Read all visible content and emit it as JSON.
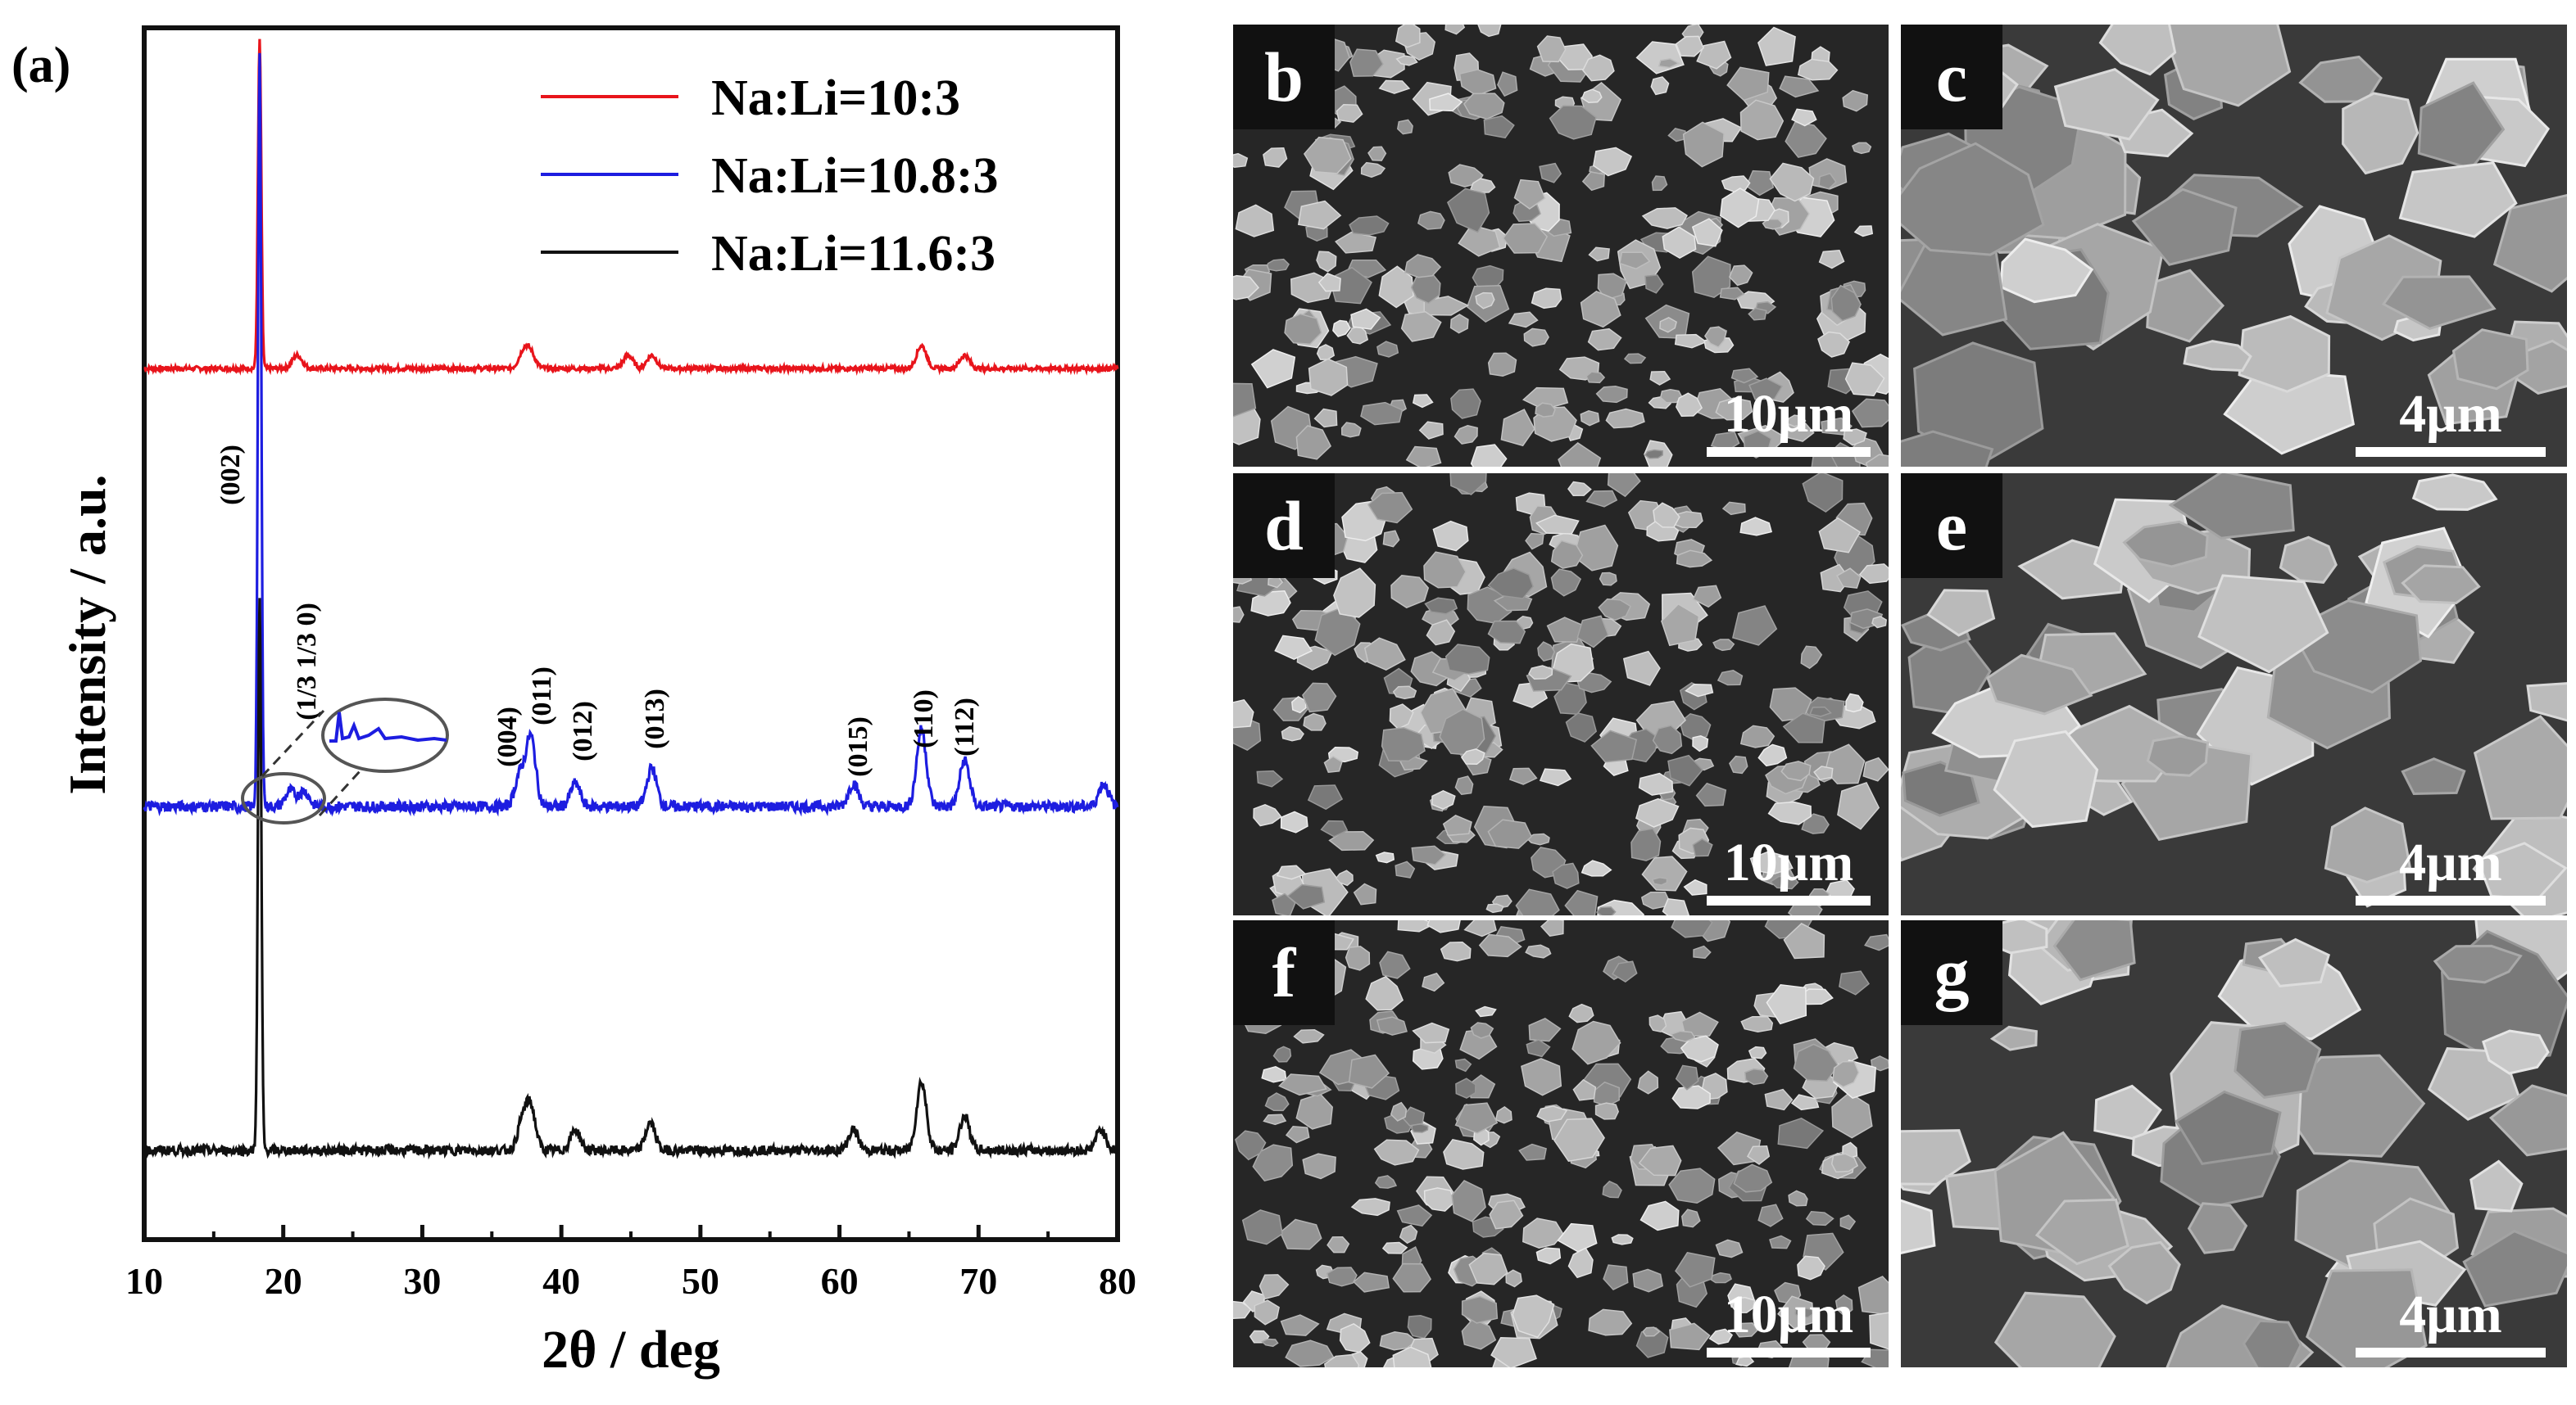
{
  "panel_a": {
    "label": "(a)",
    "chart_data": {
      "type": "line",
      "title": "",
      "xlabel": "2θ / deg",
      "ylabel": "Intensity / a.u.",
      "xlim": [
        10,
        80
      ],
      "xticks": [
        10,
        20,
        30,
        40,
        50,
        60,
        70,
        80
      ],
      "y_ticks_shown": false,
      "grid": false,
      "legend": "top-right",
      "series": [
        {
          "name": "Na:Li=10:3",
          "color": "#e8141b",
          "peaks": [
            [
              18.3,
              100
            ],
            [
              21,
              4
            ],
            [
              37.3,
              5
            ],
            [
              37.8,
              4
            ],
            [
              44.8,
              4
            ],
            [
              46.5,
              4
            ],
            [
              65.9,
              7
            ],
            [
              69,
              4
            ]
          ]
        },
        {
          "name": "Na:Li=10.8:3",
          "color": "#1d1de0",
          "peaks": [
            [
              18.3,
              98
            ],
            [
              20.5,
              2
            ],
            [
              21.5,
              2
            ],
            [
              37.0,
              4
            ],
            [
              37.8,
              9
            ],
            [
              41.0,
              3
            ],
            [
              46.5,
              5
            ],
            [
              61.0,
              3
            ],
            [
              65.9,
              10
            ],
            [
              69.0,
              6
            ],
            [
              79.0,
              3
            ]
          ]
        },
        {
          "name": "Na:Li=11.6:3",
          "color": "#111111",
          "peaks": [
            [
              18.3,
              80
            ],
            [
              37.2,
              4
            ],
            [
              37.8,
              6
            ],
            [
              41.0,
              3
            ],
            [
              46.4,
              4
            ],
            [
              61.0,
              3
            ],
            [
              65.9,
              10
            ],
            [
              69.0,
              5
            ],
            [
              78.8,
              3
            ]
          ]
        }
      ],
      "annotations": [
        "(002)",
        "(1/3 1/3 0)",
        "(004)",
        "(011)",
        "(012)",
        "(013)",
        "(015)",
        "(110)",
        "(112)"
      ]
    }
  },
  "sem_panels": [
    {
      "letter": "b",
      "scale": "10μm"
    },
    {
      "letter": "c",
      "scale": "4μm"
    },
    {
      "letter": "d",
      "scale": "10μm"
    },
    {
      "letter": "e",
      "scale": "4μm"
    },
    {
      "letter": "f",
      "scale": "10μm"
    },
    {
      "letter": "g",
      "scale": "4μm"
    }
  ]
}
